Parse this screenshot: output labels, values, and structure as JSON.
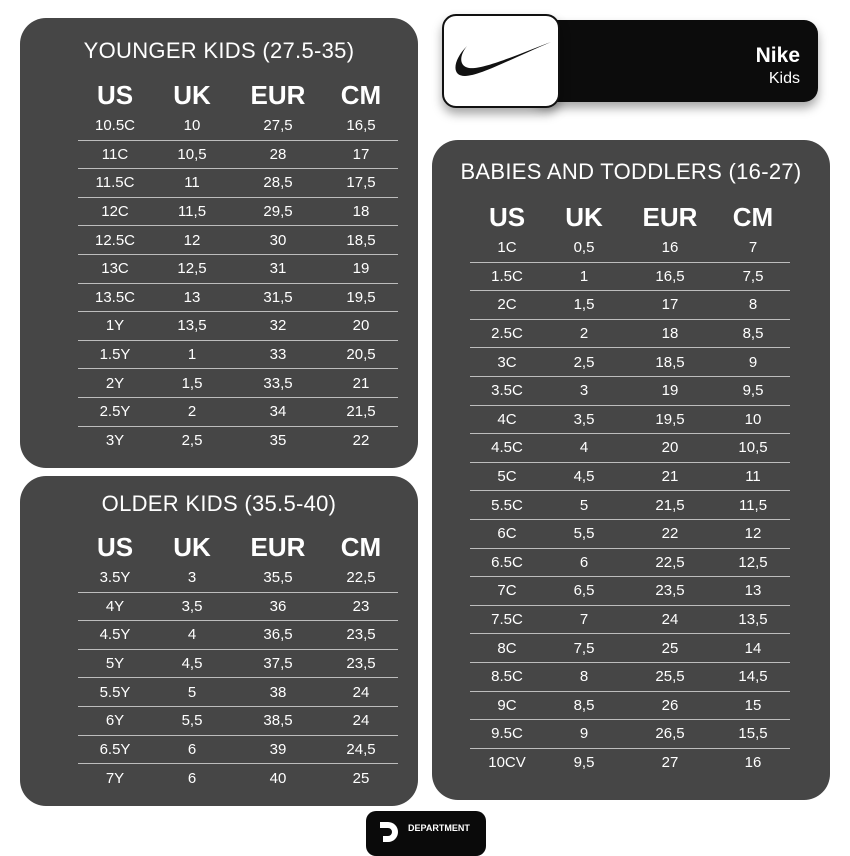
{
  "brand": {
    "name": "Nike",
    "subtitle": "Kids",
    "logo": "nike-swoosh",
    "footer": "DEPARTMENT"
  },
  "columns": [
    "US",
    "UK",
    "EUR",
    "CM"
  ],
  "tables": {
    "younger": {
      "title": "YOUNGER KIDS (27.5-35)",
      "rows": [
        [
          "10.5C",
          "10",
          "27,5",
          "16,5"
        ],
        [
          "11C",
          "10,5",
          "28",
          "17"
        ],
        [
          "11.5C",
          "11",
          "28,5",
          "17,5"
        ],
        [
          "12C",
          "11,5",
          "29,5",
          "18"
        ],
        [
          "12.5C",
          "12",
          "30",
          "18,5"
        ],
        [
          "13C",
          "12,5",
          "31",
          "19"
        ],
        [
          "13.5C",
          "13",
          "31,5",
          "19,5"
        ],
        [
          "1Y",
          "13,5",
          "32",
          "20"
        ],
        [
          "1.5Y",
          "1",
          "33",
          "20,5"
        ],
        [
          "2Y",
          "1,5",
          "33,5",
          "21"
        ],
        [
          "2.5Y",
          "2",
          "34",
          "21,5"
        ],
        [
          "3Y",
          "2,5",
          "35",
          "22"
        ]
      ]
    },
    "older": {
      "title": "OLDER KIDS (35.5-40)",
      "rows": [
        [
          "3.5Y",
          "3",
          "35,5",
          "22,5"
        ],
        [
          "4Y",
          "3,5",
          "36",
          "23"
        ],
        [
          "4.5Y",
          "4",
          "36,5",
          "23,5"
        ],
        [
          "5Y",
          "4,5",
          "37,5",
          "23,5"
        ],
        [
          "5.5Y",
          "5",
          "38",
          "24"
        ],
        [
          "6Y",
          "5,5",
          "38,5",
          "24"
        ],
        [
          "6.5Y",
          "6",
          "39",
          "24,5"
        ],
        [
          "7Y",
          "6",
          "40",
          "25"
        ]
      ]
    },
    "babies": {
      "title": "BABIES AND TODDLERS (16-27)",
      "rows": [
        [
          "1C",
          "0,5",
          "16",
          "7"
        ],
        [
          "1.5C",
          "1",
          "16,5",
          "7,5"
        ],
        [
          "2C",
          "1,5",
          "17",
          "8"
        ],
        [
          "2.5C",
          "2",
          "18",
          "8,5"
        ],
        [
          "3C",
          "2,5",
          "18,5",
          "9"
        ],
        [
          "3.5C",
          "3",
          "19",
          "9,5"
        ],
        [
          "4C",
          "3,5",
          "19,5",
          "10"
        ],
        [
          "4.5C",
          "4",
          "20",
          "10,5"
        ],
        [
          "5C",
          "4,5",
          "21",
          "11"
        ],
        [
          "5.5C",
          "5",
          "21,5",
          "11,5"
        ],
        [
          "6C",
          "5,5",
          "22",
          "12"
        ],
        [
          "6.5C",
          "6",
          "22,5",
          "12,5"
        ],
        [
          "7C",
          "6,5",
          "23,5",
          "13"
        ],
        [
          "7.5C",
          "7",
          "24",
          "13,5"
        ],
        [
          "8C",
          "7,5",
          "25",
          "14"
        ],
        [
          "8.5C",
          "8",
          "25,5",
          "14,5"
        ],
        [
          "9C",
          "8,5",
          "26",
          "15"
        ],
        [
          "9.5C",
          "9",
          "26,5",
          "15,5"
        ],
        [
          "10CV",
          "9,5",
          "27",
          "16"
        ]
      ]
    }
  }
}
